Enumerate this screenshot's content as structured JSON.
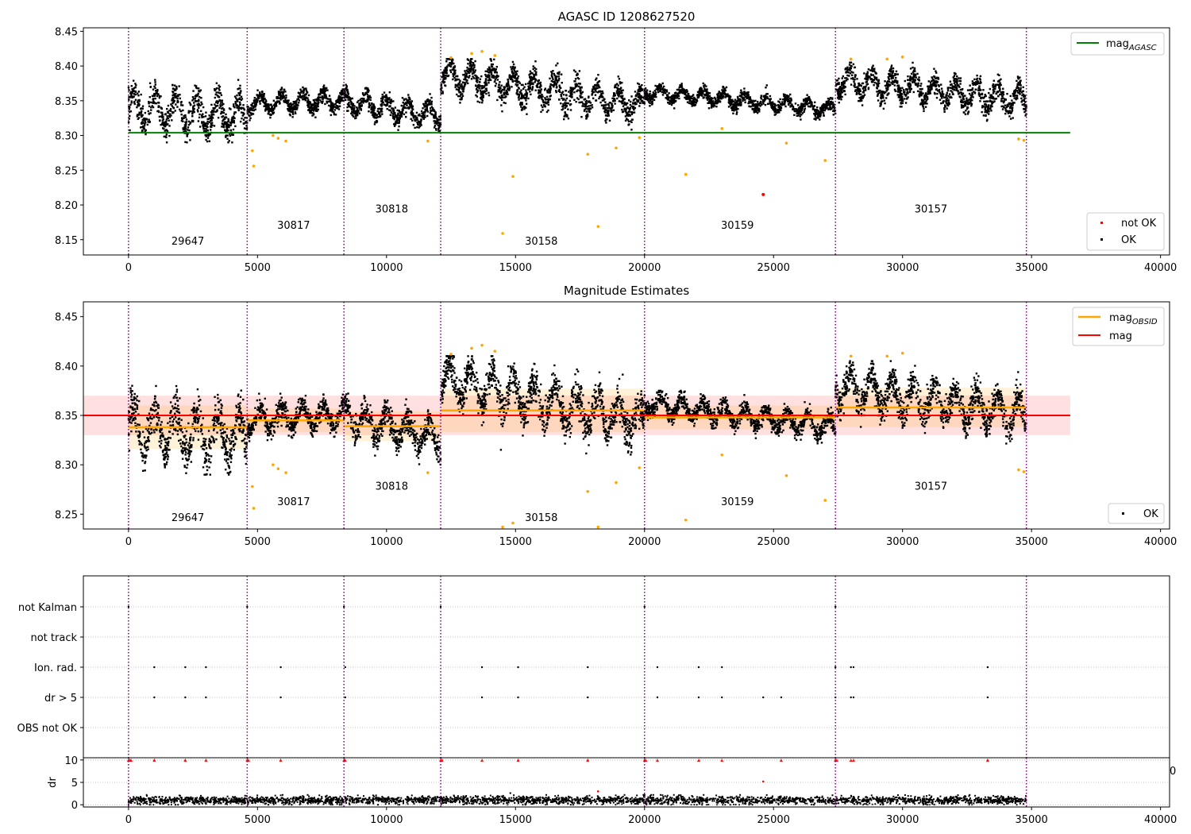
{
  "figure": {
    "background": "#ffffff",
    "x_tick_labels": [
      "0",
      "5000",
      "10000",
      "15000",
      "20000",
      "25000",
      "30000",
      "35000",
      "40000"
    ],
    "stray_tick_label": "0"
  },
  "chart_data": [
    {
      "id": "top",
      "type": "scatter",
      "title": "AGASC ID 1208627520",
      "xlim": [
        -1750,
        40350
      ],
      "ylim": [
        8.128,
        8.455
      ],
      "x_ticks": [
        0,
        5000,
        10000,
        15000,
        20000,
        25000,
        30000,
        35000,
        40000
      ],
      "y_ticks": [
        8.15,
        8.2,
        8.25,
        8.3,
        8.35,
        8.4,
        8.45
      ],
      "y_tick_labels": [
        "8.15",
        "8.20",
        "8.25",
        "8.30",
        "8.35",
        "8.40",
        "8.45"
      ],
      "grid": false,
      "obs_boundaries": [
        0,
        4600,
        8350,
        12100,
        20000,
        27400,
        34800
      ],
      "obsids": [
        {
          "label": "29647",
          "x": 2300,
          "y": 8.143
        },
        {
          "label": "30817",
          "x": 6400,
          "y": 8.166
        },
        {
          "label": "30818",
          "x": 10200,
          "y": 8.189
        },
        {
          "label": "30158",
          "x": 16000,
          "y": 8.143
        },
        {
          "label": "30159",
          "x": 23600,
          "y": 8.166
        },
        {
          "label": "30157",
          "x": 31100,
          "y": 8.189
        }
      ],
      "segments": [
        {
          "x0": 0,
          "x1": 4600,
          "mean": 8.333,
          "amp": 0.025,
          "trend": -0.01,
          "lo": 8.29,
          "hi": 8.38
        },
        {
          "x0": 4600,
          "x1": 8350,
          "mean": 8.348,
          "amp": 0.012,
          "trend": 0.006,
          "lo": 8.315,
          "hi": 8.372
        },
        {
          "x0": 8350,
          "x1": 12100,
          "mean": 8.338,
          "amp": 0.015,
          "trend": -0.022,
          "lo": 8.3,
          "hi": 8.38
        },
        {
          "x0": 12100,
          "x1": 20000,
          "mean": 8.365,
          "amp": 0.02,
          "trend": -0.045,
          "lo": 8.3,
          "hi": 8.41
        },
        {
          "x0": 20000,
          "x1": 27400,
          "mean": 8.35,
          "amp": 0.01,
          "trend": -0.025,
          "lo": 8.315,
          "hi": 8.375
        },
        {
          "x0": 27400,
          "x1": 34800,
          "mean": 8.365,
          "amp": 0.018,
          "trend": -0.03,
          "lo": 8.31,
          "hi": 8.405
        }
      ],
      "outliers_orange": [
        [
          4800,
          8.278
        ],
        [
          4850,
          8.256
        ],
        [
          5600,
          8.3
        ],
        [
          5800,
          8.296
        ],
        [
          6100,
          8.292
        ],
        [
          11600,
          8.292
        ],
        [
          12500,
          8.412
        ],
        [
          13300,
          8.418
        ],
        [
          13700,
          8.421
        ],
        [
          14200,
          8.415
        ],
        [
          14500,
          8.159
        ],
        [
          14900,
          8.241
        ],
        [
          17800,
          8.273
        ],
        [
          18200,
          8.169
        ],
        [
          18900,
          8.282
        ],
        [
          19800,
          8.297
        ],
        [
          21600,
          8.244
        ],
        [
          23000,
          8.31
        ],
        [
          25500,
          8.289
        ],
        [
          27000,
          8.264
        ],
        [
          28000,
          8.41
        ],
        [
          29400,
          8.41
        ],
        [
          30000,
          8.413
        ],
        [
          34500,
          8.295
        ],
        [
          34700,
          8.293
        ]
      ],
      "outliers_red": [
        [
          24600,
          8.215
        ]
      ],
      "hlines": [
        {
          "name": "mag_AGASC",
          "y": 8.304,
          "color": "#008000",
          "x0": 0,
          "x1": 36500
        }
      ],
      "legends": [
        {
          "position": "top-right",
          "entries": [
            {
              "type": "line",
              "color": "#008000",
              "label": "mag",
              "sub": "AGASC"
            }
          ]
        },
        {
          "position": "lower-right",
          "entries": [
            {
              "type": "dot",
              "color": "#ff0000",
              "label": "not OK"
            },
            {
              "type": "dot",
              "color": "#000000",
              "label": "OK"
            }
          ]
        }
      ]
    },
    {
      "id": "mid",
      "type": "scatter",
      "title": "Magnitude Estimates",
      "xlim": [
        -1750,
        40350
      ],
      "ylim": [
        8.235,
        8.465
      ],
      "x_ticks": [
        0,
        5000,
        10000,
        15000,
        20000,
        25000,
        30000,
        35000,
        40000
      ],
      "y_ticks": [
        8.25,
        8.3,
        8.35,
        8.4,
        8.45
      ],
      "y_tick_labels": [
        "8.25",
        "8.30",
        "8.35",
        "8.40",
        "8.45"
      ],
      "grid": false,
      "obs_boundaries": [
        0,
        4600,
        8350,
        12100,
        20000,
        27400,
        34800
      ],
      "obsids": [
        {
          "label": "29647",
          "x": 2300,
          "y": 8.243
        },
        {
          "label": "30817",
          "x": 6400,
          "y": 8.259
        },
        {
          "label": "30818",
          "x": 10200,
          "y": 8.275
        },
        {
          "label": "30158",
          "x": 16000,
          "y": 8.243
        },
        {
          "label": "30159",
          "x": 23600,
          "y": 8.259
        },
        {
          "label": "30157",
          "x": 31100,
          "y": 8.275
        }
      ],
      "mag_obsid": [
        {
          "x0": 0,
          "x1": 4600,
          "mag": 8.338,
          "err": 0.022
        },
        {
          "x0": 4600,
          "x1": 8350,
          "mag": 8.345,
          "err": 0.012
        },
        {
          "x0": 8350,
          "x1": 12100,
          "mag": 8.339,
          "err": 0.015
        },
        {
          "x0": 12100,
          "x1": 20000,
          "mag": 8.355,
          "err": 0.022
        },
        {
          "x0": 20000,
          "x1": 27400,
          "mag": 8.348,
          "err": 0.012
        },
        {
          "x0": 27400,
          "x1": 34800,
          "mag": 8.358,
          "err": 0.02
        }
      ],
      "mag": {
        "value": 8.35,
        "band": [
          8.33,
          8.37
        ],
        "x0": -1750,
        "x1": 36500,
        "color": "#ff0000"
      },
      "legends": [
        {
          "position": "top-right",
          "entries": [
            {
              "type": "line",
              "color": "#ffa500",
              "label": "mag",
              "sub": "OBSID"
            },
            {
              "type": "line",
              "color": "#ff0000",
              "label": "mag"
            }
          ]
        },
        {
          "position": "lower-right",
          "entries": [
            {
              "type": "dot",
              "color": "#000000",
              "label": "OK"
            }
          ]
        }
      ]
    },
    {
      "id": "flags",
      "type": "scatter",
      "xlim": [
        -1750,
        40350
      ],
      "categories": [
        "OBS not OK",
        "dr > 5",
        "Ion. rad.",
        "not track",
        "not Kalman"
      ],
      "grid": true,
      "obs_boundaries": [
        0,
        4600,
        8350,
        12100,
        20000,
        27400,
        34800
      ],
      "points": {
        "not Kalman": [
          0,
          4600,
          8350,
          12100,
          20000,
          27400
        ],
        "not track": [],
        "Ion. rad.": [
          1000,
          2200,
          3000,
          5900,
          8400,
          13700,
          15100,
          17800,
          20500,
          22100,
          23000,
          27400,
          28000,
          28100,
          33300
        ],
        "dr > 5": [
          1000,
          2200,
          3000,
          5900,
          8400,
          13700,
          15100,
          17800,
          20500,
          22100,
          23000,
          24600,
          25300,
          27400,
          28000,
          28100,
          33300
        ],
        "OBS not OK": []
      }
    },
    {
      "id": "dr",
      "type": "scatter",
      "ylabel": "dr",
      "xlim": [
        -1750,
        40350
      ],
      "ylim": [
        -0.5,
        10.5
      ],
      "x_ticks": [
        0,
        5000,
        10000,
        15000,
        20000,
        25000,
        30000,
        35000,
        40000
      ],
      "y_ticks": [
        0,
        5,
        10
      ],
      "y_tick_labels": [
        "0",
        "5",
        "10"
      ],
      "obs_boundaries": [
        0,
        4600,
        8350,
        12100,
        20000,
        27400,
        34800
      ],
      "clipped_red_x": [
        0,
        50,
        100,
        1000,
        2200,
        3000,
        4600,
        4650,
        5900,
        8350,
        8400,
        12100,
        12150,
        13700,
        15100,
        17800,
        20000,
        20050,
        20500,
        22100,
        23000,
        25300,
        27400,
        27450,
        28000,
        28100,
        33300
      ],
      "red_points": [
        [
          24600,
          5.2
        ],
        [
          18200,
          3.0
        ]
      ],
      "black_outliers": [
        [
          14800,
          2.6
        ],
        [
          20000,
          2.2
        ]
      ],
      "baseline": {
        "x0": 0,
        "x1": 34800,
        "mean": 1.0,
        "spread": 1.3
      }
    }
  ]
}
